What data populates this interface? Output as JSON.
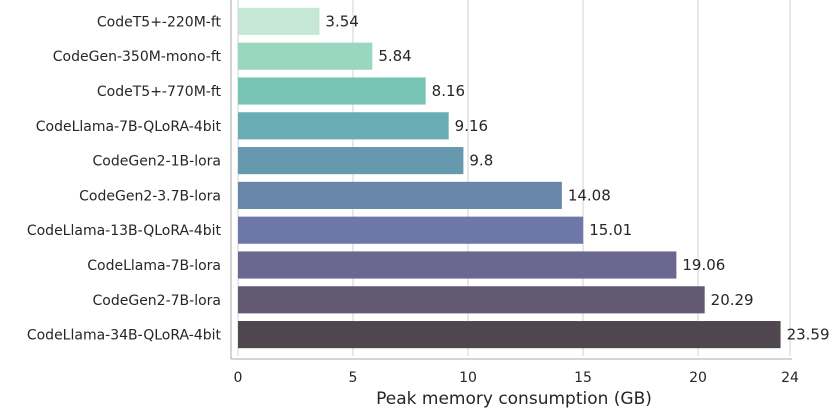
{
  "chart_data": {
    "type": "bar",
    "orientation": "horizontal",
    "xlabel": "Peak memory consumption (GB)",
    "ylabel": "",
    "xlim": [
      0,
      24
    ],
    "xticks": [
      0,
      5,
      10,
      15,
      20,
      24
    ],
    "grid": "vertical",
    "categories": [
      "CodeT5+-220M-ft",
      "CodeGen-350M-mono-ft",
      "CodeT5+-770M-ft",
      "CodeLlama-7B-QLoRA-4bit",
      "CodeGen2-1B-lora",
      "CodeGen2-3.7B-lora",
      "CodeLlama-13B-QLoRA-4bit",
      "CodeLlama-7B-lora",
      "CodeGen2-7B-lora",
      "CodeLlama-34B-QLoRA-4bit"
    ],
    "values": [
      3.54,
      5.84,
      8.16,
      9.16,
      9.8,
      14.08,
      15.01,
      19.06,
      20.29,
      23.59
    ],
    "value_labels": [
      "3.54",
      "5.84",
      "8.16",
      "9.16",
      "9.8",
      "14.08",
      "15.01",
      "19.06",
      "20.29",
      "23.59"
    ],
    "colors": [
      "#c7e7d6",
      "#99d8bf",
      "#78c5b6",
      "#6aadb5",
      "#6698ae",
      "#6886a8",
      "#6e78a8",
      "#6b6890",
      "#625a73",
      "#4f464f"
    ]
  }
}
